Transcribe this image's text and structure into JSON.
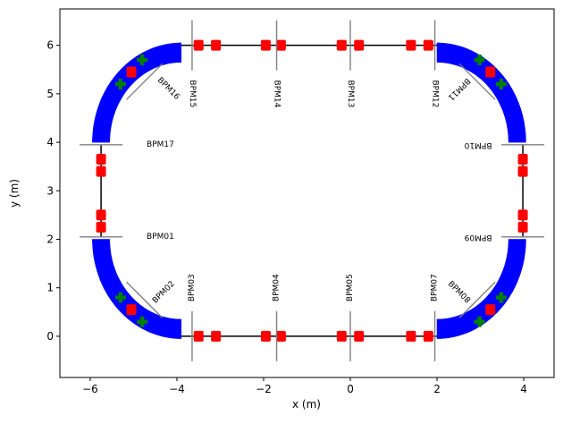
{
  "chart_data": {
    "type": "diagram",
    "xlabel": "x (m)",
    "ylabel": "y (m)",
    "xlim": [
      -6.7,
      4.7
    ],
    "ylim": [
      -0.85,
      6.75
    ],
    "xticks": [
      {
        "value": -6,
        "label": "−6"
      },
      {
        "value": -4,
        "label": "−4"
      },
      {
        "value": -2,
        "label": "−2"
      },
      {
        "value": 0,
        "label": "0"
      },
      {
        "value": 2,
        "label": "2"
      },
      {
        "value": 4,
        "label": "4"
      }
    ],
    "yticks": [
      {
        "value": 0,
        "label": "0"
      },
      {
        "value": 1,
        "label": "1"
      },
      {
        "value": 2,
        "label": "2"
      },
      {
        "value": 3,
        "label": "3"
      },
      {
        "value": 4,
        "label": "4"
      },
      {
        "value": 5,
        "label": "5"
      },
      {
        "value": 6,
        "label": "6"
      }
    ],
    "grid": false,
    "colors": {
      "beamline": "#000000",
      "dipole": "#0000ff",
      "quadrupole": "#ff0000",
      "corrector": "#008000",
      "bpm_marker": "#808080"
    },
    "ring": {
      "straight_bottom": {
        "y": 0,
        "x_from": -3.9,
        "x_to": 2.0
      },
      "straight_top": {
        "y": 6,
        "x_from": -3.9,
        "x_to": 2.0
      },
      "straight_left": {
        "x": -5.75,
        "y_from": 2.05,
        "y_to": 3.95
      },
      "straight_right": {
        "x": 3.98,
        "y_from": 2.05,
        "y_to": 3.95
      }
    },
    "dipoles": [
      {
        "cx": -3.9,
        "cy": 2.0,
        "r_in": 1.65,
        "r_out": 2.05,
        "a0": 180,
        "a1": 225
      },
      {
        "cx": -3.9,
        "cy": 2.0,
        "r_in": 1.65,
        "r_out": 2.05,
        "a0": 225,
        "a1": 270
      },
      {
        "cx": -3.9,
        "cy": 4.0,
        "r_in": 1.65,
        "r_out": 2.05,
        "a0": 90,
        "a1": 135
      },
      {
        "cx": -3.9,
        "cy": 4.0,
        "r_in": 1.65,
        "r_out": 2.05,
        "a0": 135,
        "a1": 180
      },
      {
        "cx": 2.0,
        "cy": 2.0,
        "r_in": 1.65,
        "r_out": 2.05,
        "a0": 270,
        "a1": 315
      },
      {
        "cx": 2.0,
        "cy": 2.0,
        "r_in": 1.65,
        "r_out": 2.05,
        "a0": 315,
        "a1": 360
      },
      {
        "cx": 2.0,
        "cy": 4.0,
        "r_in": 1.65,
        "r_out": 2.05,
        "a0": 0,
        "a1": 45
      },
      {
        "cx": 2.0,
        "cy": 4.0,
        "r_in": 1.65,
        "r_out": 2.05,
        "a0": 45,
        "a1": 90
      }
    ],
    "quadrupoles": [
      {
        "x": -3.5,
        "y": 0
      },
      {
        "x": -3.1,
        "y": 0
      },
      {
        "x": -1.95,
        "y": 0
      },
      {
        "x": -1.6,
        "y": 0
      },
      {
        "x": -0.2,
        "y": 0
      },
      {
        "x": 0.2,
        "y": 0
      },
      {
        "x": 1.4,
        "y": 0
      },
      {
        "x": 1.8,
        "y": 0
      },
      {
        "x": -3.5,
        "y": 6
      },
      {
        "x": -3.1,
        "y": 6
      },
      {
        "x": -1.95,
        "y": 6
      },
      {
        "x": -1.6,
        "y": 6
      },
      {
        "x": -0.2,
        "y": 6
      },
      {
        "x": 0.2,
        "y": 6
      },
      {
        "x": 1.4,
        "y": 6
      },
      {
        "x": 1.8,
        "y": 6
      },
      {
        "x": -5.75,
        "y": 2.25
      },
      {
        "x": -5.75,
        "y": 2.5
      },
      {
        "x": -5.75,
        "y": 3.4
      },
      {
        "x": -5.75,
        "y": 3.65
      },
      {
        "x": 3.98,
        "y": 2.25
      },
      {
        "x": 3.98,
        "y": 2.5
      },
      {
        "x": 3.98,
        "y": 3.4
      },
      {
        "x": 3.98,
        "y": 3.65
      },
      {
        "x": -5.05,
        "y": 0.55
      },
      {
        "x": -5.05,
        "y": 5.45
      },
      {
        "x": 3.23,
        "y": 0.55
      },
      {
        "x": 3.23,
        "y": 5.45
      }
    ],
    "correctors": [
      {
        "x": -5.3,
        "y": 0.8
      },
      {
        "x": -4.8,
        "y": 0.3
      },
      {
        "x": -5.3,
        "y": 5.2
      },
      {
        "x": -4.8,
        "y": 5.7
      },
      {
        "x": 3.48,
        "y": 0.8
      },
      {
        "x": 2.98,
        "y": 0.3
      },
      {
        "x": 3.48,
        "y": 5.2
      },
      {
        "x": 2.98,
        "y": 5.7
      }
    ],
    "bpms": [
      {
        "name": "BPM01",
        "x": -5.75,
        "y": 2.05,
        "orient": "h",
        "lx": -4.7,
        "ly": 2.05,
        "rot": 0,
        "anchor": "start"
      },
      {
        "name": "BPM02",
        "x": -4.75,
        "y": 0.75,
        "orient": "d1",
        "lx": -4.3,
        "ly": 0.9,
        "rot": -45,
        "anchor": "middle"
      },
      {
        "name": "BPM03",
        "x": -3.65,
        "y": 0,
        "orient": "v",
        "lx": -3.65,
        "ly": 1.0,
        "rot": -90,
        "anchor": "middle"
      },
      {
        "name": "BPM04",
        "x": -1.7,
        "y": 0,
        "orient": "v",
        "lx": -1.7,
        "ly": 1.0,
        "rot": -90,
        "anchor": "middle"
      },
      {
        "name": "BPM05",
        "x": 0.0,
        "y": 0,
        "orient": "v",
        "lx": 0.0,
        "ly": 1.0,
        "rot": -90,
        "anchor": "middle"
      },
      {
        "name": "BPM07",
        "x": 1.95,
        "y": 0,
        "orient": "v",
        "lx": 1.95,
        "ly": 1.0,
        "rot": -90,
        "anchor": "middle"
      },
      {
        "name": "BPM08",
        "x": 2.93,
        "y": 0.75,
        "orient": "d2",
        "lx": 2.5,
        "ly": 0.9,
        "rot": 45,
        "anchor": "middle"
      },
      {
        "name": "BPM09",
        "x": 3.98,
        "y": 2.05,
        "orient": "h",
        "lx": 2.95,
        "ly": 2.05,
        "rot": 180,
        "anchor": "middle"
      },
      {
        "name": "BPM10",
        "x": 3.98,
        "y": 3.95,
        "orient": "h",
        "lx": 2.95,
        "ly": 3.95,
        "rot": 180,
        "anchor": "middle"
      },
      {
        "name": "BPM11",
        "x": 2.93,
        "y": 5.25,
        "orient": "d1",
        "lx": 2.5,
        "ly": 5.1,
        "rot": 135,
        "anchor": "middle"
      },
      {
        "name": "BPM12",
        "x": 1.95,
        "y": 6,
        "orient": "v",
        "lx": 1.95,
        "ly": 5.0,
        "rot": 90,
        "anchor": "middle"
      },
      {
        "name": "BPM13",
        "x": 0.0,
        "y": 6,
        "orient": "v",
        "lx": 0.0,
        "ly": 5.0,
        "rot": 90,
        "anchor": "middle"
      },
      {
        "name": "BPM14",
        "x": -1.7,
        "y": 6,
        "orient": "v",
        "lx": -1.7,
        "ly": 5.0,
        "rot": 90,
        "anchor": "middle"
      },
      {
        "name": "BPM15",
        "x": -3.65,
        "y": 6,
        "orient": "v",
        "lx": -3.65,
        "ly": 5.0,
        "rot": 90,
        "anchor": "middle"
      },
      {
        "name": "BPM16",
        "x": -4.75,
        "y": 5.25,
        "orient": "d2",
        "lx": -4.2,
        "ly": 5.1,
        "rot": 45,
        "anchor": "middle"
      },
      {
        "name": "BPM17",
        "x": -5.75,
        "y": 3.95,
        "orient": "h",
        "lx": -4.7,
        "ly": 3.95,
        "rot": 0,
        "anchor": "start"
      }
    ]
  }
}
